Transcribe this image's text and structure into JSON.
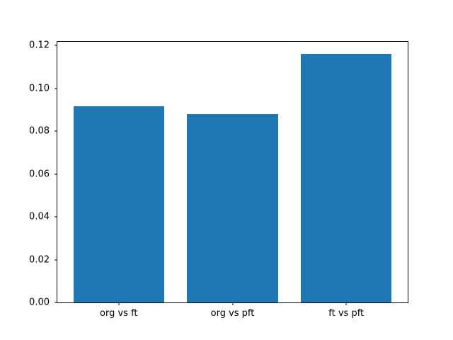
{
  "chart_data": {
    "type": "bar",
    "title": "",
    "xlabel": "",
    "ylabel": "",
    "categories": [
      "org vs ft",
      "org vs pft",
      "ft vs pft"
    ],
    "values": [
      0.0917,
      0.088,
      0.1162
    ],
    "ylim": [
      0,
      0.1218
    ],
    "xlim": [
      -0.54,
      2.54
    ],
    "yticks": [
      0.0,
      0.02,
      0.04,
      0.06,
      0.08,
      0.1,
      0.12
    ],
    "ytick_labels": [
      "0.00",
      "0.02",
      "0.04",
      "0.06",
      "0.08",
      "0.10",
      "0.12"
    ],
    "bar_width_fraction": 0.8,
    "grid": false,
    "legend": false,
    "colors": {
      "bar": "#1f77b4",
      "spine": "#000000",
      "text": "#000000",
      "background": "#ffffff"
    }
  }
}
